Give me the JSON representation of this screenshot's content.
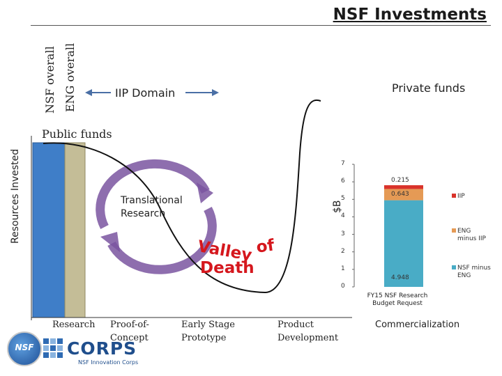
{
  "title": "NSF Investments",
  "y_axis_label": "Resources Invested",
  "bars": {
    "nsf_overall": "NSF overall",
    "eng_overall": "ENG overall"
  },
  "iip_domain": "IIP Domain",
  "private_funds": "Private funds",
  "public_funds": "Public funds",
  "translational": [
    "Translational",
    "Research"
  ],
  "valley": {
    "word1": "Valley",
    "word2": "of",
    "word3": "Death"
  },
  "stages": [
    {
      "line1": "Research",
      "line2": ""
    },
    {
      "line1": "Proof-of-",
      "line2": "Concept"
    },
    {
      "line1": "Early Stage",
      "line2": "Prototype"
    },
    {
      "line1": "Product",
      "line2": "Development"
    },
    {
      "line1": "Commercialization",
      "line2": ""
    }
  ],
  "logos": {
    "corps_text": "CORPS",
    "corps_sub": "NSF Innovation Corps",
    "nsf": "NSF"
  },
  "colors": {
    "nsf_bar": "#3f7ec8",
    "eng_bar": "#c4bd97",
    "arrow_blue": "#4a6fa5",
    "circle_purple": "#7a55a0",
    "valley_red": "#d5171d",
    "iip": "#d9332b",
    "eng_minus_iip": "#e59a55",
    "nsf_minus_eng": "#49acc6"
  },
  "chart_data": {
    "type": "bar",
    "stacked": true,
    "ylabel": "$B",
    "xlabel": "FY15 NSF Research Budget Request",
    "ylim": [
      0,
      7
    ],
    "yticks": [
      0,
      1,
      2,
      3,
      4,
      5,
      6,
      7
    ],
    "categories": [
      ""
    ],
    "series": [
      {
        "name": "NSF minus ENG",
        "values": [
          4.948
        ],
        "label": "4.948",
        "color": "#49acc6"
      },
      {
        "name": "ENG minus IIP",
        "values": [
          0.643
        ],
        "label": "0.643",
        "color": "#e59a55"
      },
      {
        "name": "IIP",
        "values": [
          0.215
        ],
        "label": "0.215",
        "color": "#d9332b"
      }
    ],
    "legend_order": [
      "IIP",
      "ENG minus IIP",
      "NSF minus ENG"
    ],
    "legend_lines": [
      [
        "IIP"
      ],
      [
        "ENG",
        "minus IIP"
      ],
      [
        "NSF minus",
        "ENG"
      ]
    ],
    "legend_position": "right"
  }
}
